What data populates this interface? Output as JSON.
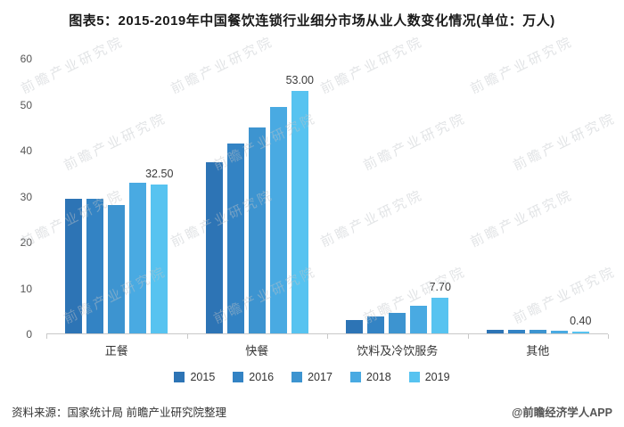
{
  "title": "图表5：2015-2019年中国餐饮连锁行业细分市场从业人数变化情况(单位：万人)",
  "watermark": "前瞻产业研究院",
  "footer": {
    "source": "资料来源：国家统计局 前瞻产业研究院整理",
    "brand": "@前瞻经济学人APP"
  },
  "chart_data": {
    "type": "bar",
    "title": "2015-2019年中国餐饮连锁行业细分市场从业人数变化情况",
    "unit": "万人",
    "categories": [
      "正餐",
      "快餐",
      "饮料及冷饮服务",
      "其他"
    ],
    "series": [
      {
        "name": "2015",
        "color": "#2d74b5",
        "values": [
          29.5,
          37.5,
          3.0,
          0.8
        ]
      },
      {
        "name": "2016",
        "color": "#3383c4",
        "values": [
          29.5,
          41.5,
          3.7,
          0.8
        ]
      },
      {
        "name": "2017",
        "color": "#3d94d0",
        "values": [
          28.0,
          45.0,
          4.5,
          0.7
        ]
      },
      {
        "name": "2018",
        "color": "#49aae2",
        "values": [
          33.0,
          49.5,
          6.0,
          0.5
        ]
      },
      {
        "name": "2019",
        "color": "#57c3f0",
        "values": [
          32.5,
          53.0,
          7.7,
          0.4
        ]
      }
    ],
    "data_labels": [
      "32.50",
      "53.00",
      "7.70",
      "0.40"
    ],
    "ylim": [
      0,
      60
    ],
    "yticks": [
      0,
      10,
      20,
      30,
      40,
      50,
      60
    ],
    "grid": false,
    "legend_position": "bottom"
  }
}
